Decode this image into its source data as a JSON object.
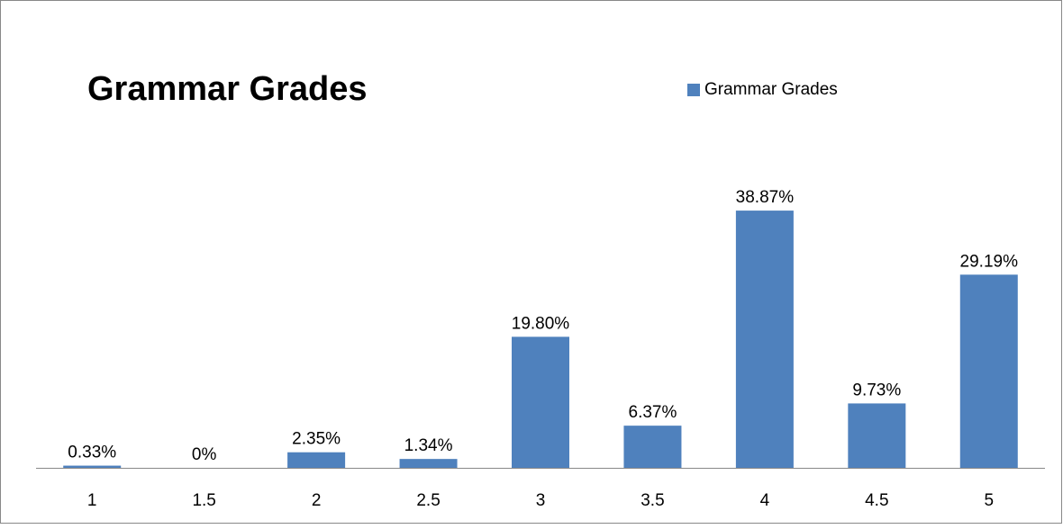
{
  "chart_data": {
    "type": "bar",
    "title": "Grammar Grades",
    "categories": [
      "1",
      "1.5",
      "2",
      "2.5",
      "3",
      "3.5",
      "4",
      "4.5",
      "5"
    ],
    "series": [
      {
        "name": "Grammar Grades",
        "color": "#4f81bd",
        "values": [
          0.33,
          0,
          2.35,
          1.34,
          19.8,
          6.37,
          38.87,
          9.73,
          29.19
        ],
        "value_labels": [
          "0.33%",
          "0%",
          "2.35%",
          "1.34%",
          "19.80%",
          "6.37%",
          "38.87%",
          "9.73%",
          "29.19%"
        ]
      }
    ],
    "ylim": [
      0,
      45
    ],
    "legend": "top-right"
  }
}
